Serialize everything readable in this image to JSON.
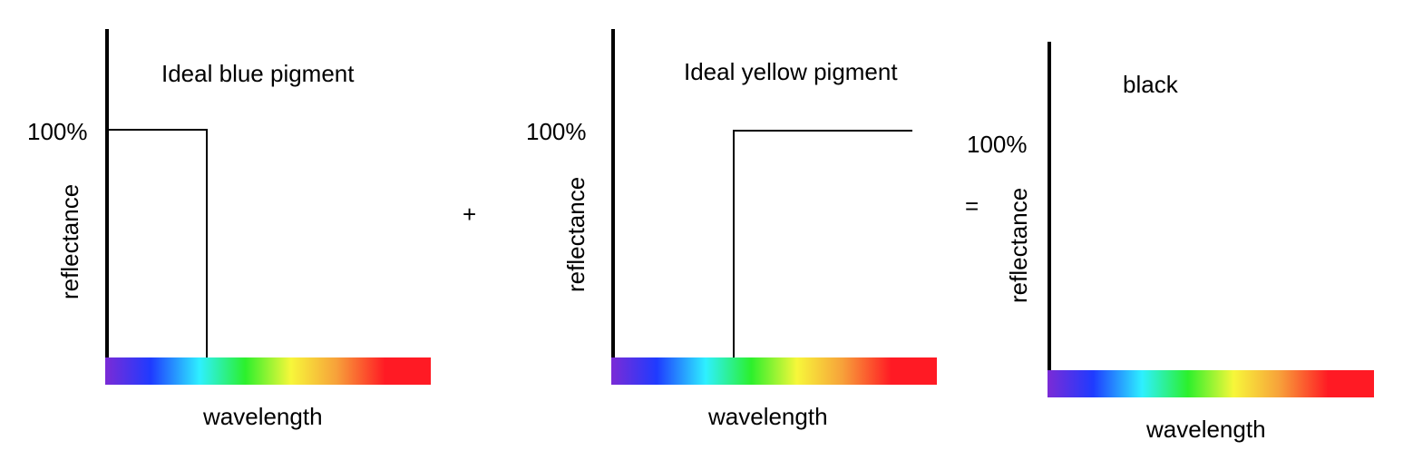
{
  "panels": [
    {
      "title": "Ideal blue pigment",
      "percent_label": "100%",
      "y_label": "reflectance",
      "x_label": "wavelength",
      "reflects": "short wavelengths (violet to cyan)"
    },
    {
      "title": "Ideal yellow pigment",
      "percent_label": "100%",
      "y_label": "reflectance",
      "x_label": "wavelength",
      "reflects": "long wavelengths (green to red)"
    },
    {
      "title": "black",
      "percent_label": "100%",
      "y_label": "reflectance",
      "x_label": "wavelength",
      "reflects": "none"
    }
  ],
  "operators": {
    "plus": "+",
    "equals": "="
  },
  "spectrum_colors": [
    "#7b2bd6",
    "#1f3bff",
    "#2ef0ff",
    "#2cf02c",
    "#f7f73a",
    "#f7a13a",
    "#ff1a24",
    "#ff1a24"
  ]
}
